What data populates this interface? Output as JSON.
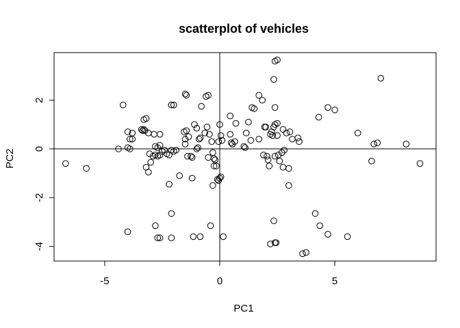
{
  "chart_data": {
    "type": "scatter",
    "title": "scatterplot of vehicles",
    "xlabel": "PC1",
    "ylabel": "PC2",
    "xlim": [
      -7.2,
      9.4
    ],
    "ylim": [
      -4.6,
      3.95
    ],
    "xticks": [
      -5,
      0,
      5
    ],
    "yticks": [
      -4,
      -2,
      0,
      2
    ],
    "reference_lines": {
      "x": 0,
      "y": 0
    },
    "grid": false,
    "points": [
      [
        -6.7,
        -0.6
      ],
      [
        -5.8,
        -0.8
      ],
      [
        -4.2,
        1.8
      ],
      [
        -4.4,
        0.0
      ],
      [
        -4.0,
        0.05
      ],
      [
        -3.9,
        0.0
      ],
      [
        -3.9,
        0.4
      ],
      [
        -3.8,
        0.4
      ],
      [
        -4.0,
        0.7
      ],
      [
        -3.8,
        0.65
      ],
      [
        -3.4,
        0.8
      ],
      [
        -3.35,
        0.75
      ],
      [
        -3.3,
        0.8
      ],
      [
        -3.25,
        0.75
      ],
      [
        -3.3,
        1.2
      ],
      [
        -3.2,
        1.25
      ],
      [
        -3.2,
        -0.75
      ],
      [
        -3.1,
        -0.95
      ],
      [
        -3.05,
        -0.2
      ],
      [
        -3.0,
        -0.55
      ],
      [
        -2.9,
        -0.3
      ],
      [
        -2.8,
        -0.25
      ],
      [
        -2.7,
        -0.3
      ],
      [
        -2.6,
        -0.25
      ],
      [
        -3.1,
        0.65
      ],
      [
        -2.85,
        0.6
      ],
      [
        -2.6,
        0.6
      ],
      [
        -2.8,
        0.1
      ],
      [
        -2.7,
        0.05
      ],
      [
        -2.6,
        0.15
      ],
      [
        -2.5,
        -0.1
      ],
      [
        -2.4,
        -0.05
      ],
      [
        -2.3,
        -0.2
      ],
      [
        -2.2,
        -0.25
      ],
      [
        -2.1,
        -0.05
      ],
      [
        -2.0,
        -0.1
      ],
      [
        -1.9,
        -0.05
      ],
      [
        -2.2,
        -1.45
      ],
      [
        -1.75,
        -1.1
      ],
      [
        -2.1,
        1.8
      ],
      [
        -2.0,
        1.8
      ],
      [
        -1.5,
        2.25
      ],
      [
        -1.45,
        2.2
      ],
      [
        -1.55,
        0.7
      ],
      [
        -1.45,
        0.75
      ],
      [
        -1.5,
        0.4
      ],
      [
        -1.35,
        0.5
      ],
      [
        -1.5,
        0.2
      ],
      [
        -1.4,
        -0.3
      ],
      [
        -1.25,
        -0.3
      ],
      [
        -1.2,
        -0.35
      ],
      [
        -1.2,
        -1.2
      ],
      [
        -1.1,
        1.0
      ],
      [
        -1.0,
        0.85
      ],
      [
        -1.0,
        0.0
      ],
      [
        -0.95,
        0.05
      ],
      [
        -0.9,
        0.4
      ],
      [
        -0.85,
        0.45
      ],
      [
        -0.8,
        1.75
      ],
      [
        -0.65,
        0.65
      ],
      [
        -0.55,
        0.9
      ],
      [
        -0.5,
        -0.35
      ],
      [
        -0.45,
        0.6
      ],
      [
        -0.35,
        0.3
      ],
      [
        -0.3,
        -0.15
      ],
      [
        -0.25,
        -0.4
      ],
      [
        -0.25,
        -0.7
      ],
      [
        -0.2,
        -0.45
      ],
      [
        -0.15,
        -0.7
      ],
      [
        -0.3,
        -1.5
      ],
      [
        -0.05,
        -1.3
      ],
      [
        0.0,
        -1.2
      ],
      [
        0.05,
        -1.15
      ],
      [
        -0.1,
        -1.25
      ],
      [
        0.0,
        1.0
      ],
      [
        0.05,
        0.55
      ],
      [
        -0.6,
        2.15
      ],
      [
        -0.5,
        2.2
      ],
      [
        -0.05,
        0.3
      ],
      [
        0.1,
        0.35
      ],
      [
        0.45,
        1.35
      ],
      [
        0.45,
        0.6
      ],
      [
        0.5,
        0.25
      ],
      [
        0.55,
        0.2
      ],
      [
        0.65,
        0.3
      ],
      [
        0.7,
        1.05
      ],
      [
        1.1,
        0.05
      ],
      [
        1.05,
        0.1
      ],
      [
        1.15,
        0.65
      ],
      [
        1.25,
        1.1
      ],
      [
        1.4,
        1.7
      ],
      [
        1.5,
        1.65
      ],
      [
        1.35,
        0.35
      ],
      [
        1.7,
        2.2
      ],
      [
        1.85,
        2.0
      ],
      [
        1.95,
        0.9
      ],
      [
        2.0,
        0.9
      ],
      [
        1.7,
        0.4
      ],
      [
        1.9,
        -0.25
      ],
      [
        2.05,
        -0.3
      ],
      [
        2.1,
        -0.45
      ],
      [
        2.15,
        -0.7
      ],
      [
        2.2,
        0.6
      ],
      [
        2.25,
        0.7
      ],
      [
        2.3,
        0.55
      ],
      [
        2.35,
        0.9
      ],
      [
        2.4,
        1.0
      ],
      [
        2.5,
        1.05
      ],
      [
        2.5,
        0.55
      ],
      [
        2.4,
        3.6
      ],
      [
        2.5,
        3.65
      ],
      [
        2.35,
        2.85
      ],
      [
        2.4,
        1.7
      ],
      [
        2.4,
        -0.3
      ],
      [
        2.55,
        -0.25
      ],
      [
        2.6,
        -0.5
      ],
      [
        2.7,
        -0.15
      ],
      [
        2.75,
        -0.75
      ],
      [
        2.8,
        -0.05
      ],
      [
        2.75,
        0.8
      ],
      [
        2.9,
        0.65
      ],
      [
        3.05,
        0.7
      ],
      [
        3.15,
        0.4
      ],
      [
        3.4,
        0.45
      ],
      [
        3.45,
        0.3
      ],
      [
        3.0,
        -0.8
      ],
      [
        3.0,
        -1.5
      ],
      [
        4.3,
        1.3
      ],
      [
        4.7,
        1.7
      ],
      [
        5.0,
        1.6
      ],
      [
        6.0,
        0.65
      ],
      [
        6.7,
        0.2
      ],
      [
        6.85,
        0.25
      ],
      [
        6.6,
        -0.5
      ],
      [
        7.0,
        2.9
      ],
      [
        8.1,
        0.2
      ],
      [
        8.7,
        -0.6
      ],
      [
        -4.0,
        -3.4
      ],
      [
        -2.8,
        -3.15
      ],
      [
        -2.7,
        -3.65
      ],
      [
        -2.6,
        -3.65
      ],
      [
        -2.1,
        -3.65
      ],
      [
        -2.1,
        -2.65
      ],
      [
        -1.15,
        -3.6
      ],
      [
        -0.85,
        -3.6
      ],
      [
        -0.4,
        -3.15
      ],
      [
        0.15,
        -3.6
      ],
      [
        2.2,
        -3.9
      ],
      [
        2.4,
        -3.85
      ],
      [
        2.45,
        -3.85
      ],
      [
        2.35,
        -2.95
      ],
      [
        3.6,
        -4.3
      ],
      [
        3.75,
        -4.25
      ],
      [
        4.15,
        -2.65
      ],
      [
        4.35,
        -3.15
      ],
      [
        4.7,
        -3.5
      ],
      [
        5.55,
        -3.6
      ]
    ]
  }
}
